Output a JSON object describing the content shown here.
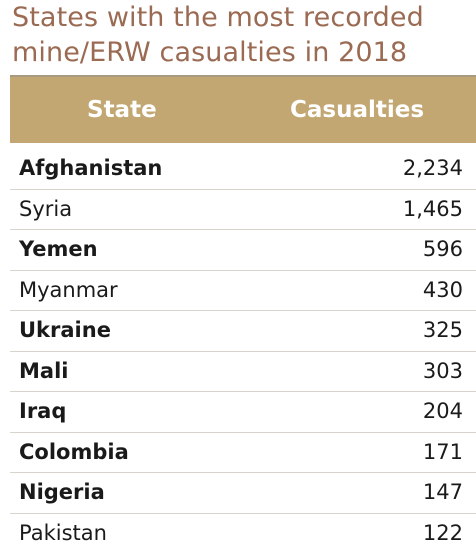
{
  "chart_data": {
    "type": "table",
    "title_lines": [
      "States with the most recorded",
      "mine/ERW casualties in 2018"
    ],
    "columns": [
      "State",
      "Casualties"
    ],
    "rows": [
      {
        "state": "Afghanistan",
        "casualties": "2,234",
        "value": 2234,
        "bold": true
      },
      {
        "state": "Syria",
        "casualties": "1,465",
        "value": 1465,
        "bold": false
      },
      {
        "state": "Yemen",
        "casualties": "596",
        "value": 596,
        "bold": true
      },
      {
        "state": "Myanmar",
        "casualties": "430",
        "value": 430,
        "bold": false
      },
      {
        "state": "Ukraine",
        "casualties": "325",
        "value": 325,
        "bold": true
      },
      {
        "state": "Mali",
        "casualties": "303",
        "value": 303,
        "bold": true
      },
      {
        "state": "Iraq",
        "casualties": "204",
        "value": 204,
        "bold": true
      },
      {
        "state": "Colombia",
        "casualties": "171",
        "value": 171,
        "bold": true
      },
      {
        "state": "Nigeria",
        "casualties": "147",
        "value": 147,
        "bold": true
      },
      {
        "state": "Pakistan",
        "casualties": "122",
        "value": 122,
        "bold": false
      }
    ]
  },
  "colors": {
    "title": "#9a6a52",
    "header_bg": "#c2a772",
    "header_text": "#ffffff",
    "row_divider": "#d9d4cb"
  }
}
